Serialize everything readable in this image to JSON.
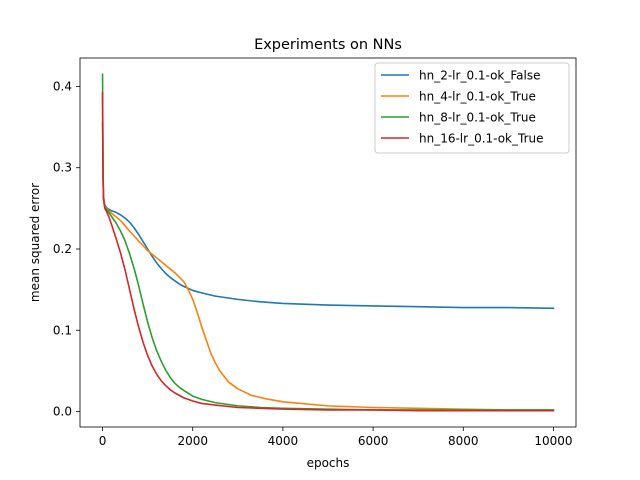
{
  "chart_data": {
    "type": "line",
    "title": "Experiments on NNs",
    "xlabel": "epochs",
    "ylabel": "mean squared error",
    "xlim": [
      -500,
      10500
    ],
    "ylim": [
      -0.019,
      0.435
    ],
    "xticks": [
      0,
      2000,
      4000,
      6000,
      8000,
      10000
    ],
    "xtick_labels": [
      "0",
      "2000",
      "4000",
      "6000",
      "8000",
      "10000"
    ],
    "yticks": [
      0.0,
      0.1,
      0.2,
      0.3,
      0.4
    ],
    "ytick_labels": [
      "0.0",
      "0.1",
      "0.2",
      "0.3",
      "0.4"
    ],
    "grid": false,
    "legend_position": "top-right",
    "series": [
      {
        "name": "hn_2-lr_0.1-ok_False",
        "color": "#1f77b4",
        "x": [
          0,
          10,
          20,
          50,
          100,
          200,
          300,
          400,
          500,
          600,
          700,
          800,
          900,
          1000,
          1100,
          1200,
          1300,
          1400,
          1500,
          1600,
          1700,
          1800,
          2000,
          2200,
          2500,
          3000,
          3500,
          4000,
          5000,
          6000,
          7000,
          8000,
          9000,
          10000
        ],
        "y": [
          0.355,
          0.29,
          0.265,
          0.254,
          0.25,
          0.247,
          0.245,
          0.242,
          0.238,
          0.233,
          0.226,
          0.218,
          0.209,
          0.2,
          0.191,
          0.183,
          0.176,
          0.17,
          0.165,
          0.161,
          0.157,
          0.154,
          0.149,
          0.146,
          0.142,
          0.138,
          0.135,
          0.133,
          0.131,
          0.13,
          0.129,
          0.128,
          0.128,
          0.127
        ]
      },
      {
        "name": "hn_4-lr_0.1-ok_True",
        "color": "#ff7f0e",
        "x": [
          0,
          10,
          20,
          50,
          100,
          200,
          400,
          600,
          800,
          1000,
          1200,
          1400,
          1600,
          1800,
          1900,
          2000,
          2100,
          2200,
          2300,
          2400,
          2500,
          2600,
          2800,
          3000,
          3300,
          3600,
          4000,
          5000,
          6000,
          7000,
          8000,
          9000,
          10000
        ],
        "y": [
          0.39,
          0.3,
          0.265,
          0.252,
          0.249,
          0.244,
          0.235,
          0.222,
          0.21,
          0.198,
          0.189,
          0.18,
          0.171,
          0.16,
          0.15,
          0.138,
          0.122,
          0.104,
          0.088,
          0.072,
          0.06,
          0.05,
          0.036,
          0.028,
          0.02,
          0.016,
          0.012,
          0.007,
          0.005,
          0.004,
          0.003,
          0.002,
          0.002
        ]
      },
      {
        "name": "hn_8-lr_0.1-ok_True",
        "color": "#2ca02c",
        "x": [
          0,
          10,
          20,
          50,
          100,
          200,
          300,
          400,
          500,
          600,
          700,
          800,
          900,
          1000,
          1100,
          1200,
          1300,
          1400,
          1500,
          1600,
          1700,
          1800,
          2000,
          2200,
          2500,
          3000,
          3500,
          4000,
          5000,
          6000,
          7000,
          8000,
          9000,
          10000
        ],
        "y": [
          0.415,
          0.3,
          0.262,
          0.251,
          0.248,
          0.24,
          0.232,
          0.222,
          0.21,
          0.194,
          0.176,
          0.155,
          0.132,
          0.11,
          0.091,
          0.075,
          0.062,
          0.051,
          0.042,
          0.035,
          0.03,
          0.026,
          0.019,
          0.015,
          0.011,
          0.007,
          0.005,
          0.004,
          0.003,
          0.002,
          0.002,
          0.002,
          0.002,
          0.002
        ]
      },
      {
        "name": "hn_16-lr_0.1-ok_True",
        "color": "#d62728",
        "x": [
          0,
          10,
          20,
          50,
          100,
          150,
          200,
          300,
          400,
          500,
          600,
          700,
          800,
          900,
          1000,
          1100,
          1200,
          1300,
          1400,
          1500,
          1600,
          1800,
          2000,
          2200,
          2500,
          3000,
          3500,
          4000,
          5000,
          6000,
          7000,
          8000,
          9000,
          10000
        ],
        "y": [
          0.392,
          0.3,
          0.262,
          0.25,
          0.245,
          0.238,
          0.23,
          0.213,
          0.195,
          0.174,
          0.15,
          0.126,
          0.104,
          0.085,
          0.069,
          0.056,
          0.046,
          0.038,
          0.032,
          0.027,
          0.023,
          0.017,
          0.013,
          0.01,
          0.008,
          0.005,
          0.004,
          0.003,
          0.002,
          0.002,
          0.001,
          0.001,
          0.001,
          0.001
        ]
      }
    ]
  }
}
